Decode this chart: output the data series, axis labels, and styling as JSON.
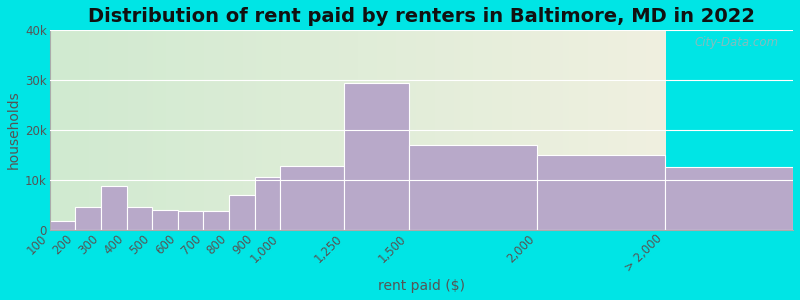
{
  "title": "Distribution of rent paid by renters in Baltimore, MD in 2022",
  "xlabel": "rent paid ($)",
  "ylabel": "households",
  "bar_color": "#b8a9c9",
  "background_outer": "#00e5e5",
  "background_inner_left": "#d0ead0",
  "background_inner_right": "#f0f0e0",
  "bin_edges": [
    100,
    200,
    300,
    400,
    500,
    600,
    700,
    800,
    900,
    1000,
    1250,
    1500,
    2000,
    2500
  ],
  "bin_labels": [
    "100",
    "200",
    "300",
    "400",
    "500",
    "600",
    "700",
    "800",
    "900",
    "1,000",
    "1,250",
    "1,500",
    "2,000",
    "> 2,000"
  ],
  "values": [
    1800,
    4500,
    8800,
    4600,
    4000,
    3800,
    3700,
    7000,
    10500,
    12800,
    29500,
    17000,
    15000,
    12500
  ],
  "ylim": [
    0,
    40000
  ],
  "yticks": [
    0,
    10000,
    20000,
    30000,
    40000
  ],
  "ytick_labels": [
    "0",
    "10k",
    "20k",
    "30k",
    "40k"
  ],
  "title_fontsize": 14,
  "axis_label_fontsize": 10,
  "tick_fontsize": 8.5,
  "watermark_text": "City-Data.com",
  "bar_edge_color": "white"
}
